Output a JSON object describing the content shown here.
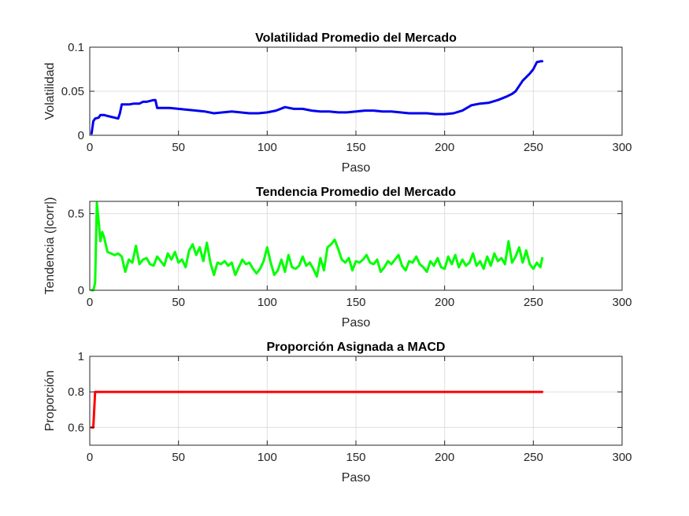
{
  "chart_data": [
    {
      "type": "line",
      "title": "Volatilidad Promedio del Mercado",
      "xlabel": "Paso",
      "ylabel": "Volatilidad",
      "xlim": [
        0,
        300
      ],
      "ylim": [
        0,
        0.1
      ],
      "xticks": [
        0,
        50,
        100,
        150,
        200,
        250,
        300
      ],
      "yticks": [
        0,
        0.05,
        0.1
      ],
      "xtick_labels": [
        "0",
        "50",
        "100",
        "150",
        "200",
        "250",
        "300"
      ],
      "ytick_labels": [
        "0",
        "0.05",
        "0.1"
      ],
      "grid": true,
      "color": "#0000ee",
      "series": [
        {
          "x": [
            1,
            2,
            3,
            5,
            6,
            8,
            10,
            12,
            14,
            16,
            17,
            18,
            20,
            22,
            25,
            28,
            30,
            32,
            34,
            36,
            37,
            38,
            40,
            45,
            50,
            55,
            60,
            65,
            70,
            75,
            80,
            85,
            90,
            95,
            100,
            105,
            110,
            115,
            120,
            125,
            130,
            135,
            140,
            145,
            150,
            155,
            160,
            165,
            170,
            175,
            180,
            185,
            190,
            195,
            200,
            205,
            210,
            215,
            220,
            225,
            230,
            235,
            238,
            240,
            242,
            244,
            246,
            248,
            250,
            252,
            254,
            255
          ],
          "y": [
            0.002,
            0.016,
            0.019,
            0.02,
            0.023,
            0.023,
            0.022,
            0.021,
            0.02,
            0.019,
            0.025,
            0.035,
            0.035,
            0.035,
            0.036,
            0.036,
            0.038,
            0.038,
            0.039,
            0.04,
            0.04,
            0.031,
            0.031,
            0.031,
            0.03,
            0.029,
            0.028,
            0.027,
            0.025,
            0.026,
            0.027,
            0.026,
            0.025,
            0.025,
            0.026,
            0.028,
            0.032,
            0.03,
            0.03,
            0.028,
            0.027,
            0.027,
            0.026,
            0.026,
            0.027,
            0.028,
            0.028,
            0.027,
            0.027,
            0.026,
            0.025,
            0.025,
            0.025,
            0.024,
            0.024,
            0.025,
            0.028,
            0.034,
            0.036,
            0.037,
            0.04,
            0.044,
            0.047,
            0.05,
            0.056,
            0.062,
            0.066,
            0.07,
            0.075,
            0.083,
            0.084,
            0.084
          ]
        }
      ]
    },
    {
      "type": "line",
      "title": "Tendencia Promedio del Mercado",
      "xlabel": "Paso",
      "ylabel": "Tendencia (|corr|)",
      "xlim": [
        0,
        300
      ],
      "ylim": [
        0,
        0.58
      ],
      "xticks": [
        0,
        50,
        100,
        150,
        200,
        250,
        300
      ],
      "yticks": [
        0,
        0.5
      ],
      "xtick_labels": [
        "0",
        "50",
        "100",
        "150",
        "200",
        "250",
        "300"
      ],
      "ytick_labels": [
        "0",
        "0.5"
      ],
      "grid": true,
      "color": "#00ff00",
      "series": [
        {
          "x": [
            1,
            2,
            3,
            4,
            5,
            6,
            7,
            8,
            9,
            10,
            12,
            14,
            16,
            18,
            20,
            22,
            24,
            26,
            28,
            30,
            32,
            34,
            36,
            38,
            40,
            42,
            44,
            46,
            48,
            50,
            52,
            54,
            56,
            58,
            60,
            62,
            64,
            66,
            68,
            70,
            72,
            74,
            76,
            78,
            80,
            82,
            84,
            86,
            88,
            90,
            92,
            94,
            96,
            98,
            100,
            102,
            104,
            106,
            108,
            110,
            112,
            114,
            116,
            118,
            120,
            122,
            124,
            126,
            128,
            130,
            132,
            134,
            136,
            138,
            140,
            142,
            144,
            146,
            148,
            150,
            152,
            154,
            156,
            158,
            160,
            162,
            164,
            166,
            168,
            170,
            172,
            174,
            176,
            178,
            180,
            182,
            184,
            186,
            188,
            190,
            192,
            194,
            196,
            198,
            200,
            202,
            204,
            206,
            208,
            210,
            212,
            214,
            216,
            218,
            220,
            222,
            224,
            226,
            228,
            230,
            232,
            234,
            236,
            238,
            240,
            242,
            244,
            246,
            248,
            250,
            252,
            254,
            255
          ],
          "y": [
            0.0,
            0.0,
            0.05,
            0.57,
            0.45,
            0.32,
            0.38,
            0.35,
            0.3,
            0.25,
            0.24,
            0.23,
            0.24,
            0.22,
            0.12,
            0.2,
            0.18,
            0.29,
            0.17,
            0.2,
            0.21,
            0.17,
            0.16,
            0.22,
            0.19,
            0.16,
            0.24,
            0.2,
            0.25,
            0.18,
            0.2,
            0.15,
            0.26,
            0.3,
            0.23,
            0.28,
            0.19,
            0.31,
            0.18,
            0.1,
            0.18,
            0.17,
            0.19,
            0.16,
            0.18,
            0.1,
            0.15,
            0.2,
            0.17,
            0.18,
            0.14,
            0.11,
            0.14,
            0.19,
            0.28,
            0.18,
            0.1,
            0.13,
            0.2,
            0.12,
            0.23,
            0.15,
            0.14,
            0.16,
            0.22,
            0.16,
            0.18,
            0.14,
            0.09,
            0.21,
            0.13,
            0.28,
            0.3,
            0.33,
            0.27,
            0.2,
            0.18,
            0.21,
            0.13,
            0.19,
            0.18,
            0.2,
            0.23,
            0.18,
            0.17,
            0.2,
            0.12,
            0.15,
            0.19,
            0.17,
            0.2,
            0.23,
            0.16,
            0.13,
            0.19,
            0.18,
            0.22,
            0.17,
            0.15,
            0.12,
            0.19,
            0.16,
            0.21,
            0.15,
            0.14,
            0.22,
            0.17,
            0.23,
            0.15,
            0.2,
            0.16,
            0.18,
            0.24,
            0.16,
            0.19,
            0.14,
            0.22,
            0.16,
            0.24,
            0.19,
            0.21,
            0.17,
            0.32,
            0.18,
            0.22,
            0.28,
            0.18,
            0.26,
            0.17,
            0.14,
            0.18,
            0.15,
            0.21
          ]
        }
      ]
    },
    {
      "type": "line",
      "title": "Proporción Asignada a MACD",
      "xlabel": "Paso",
      "ylabel": "Proporción",
      "xlim": [
        0,
        300
      ],
      "ylim": [
        0.5,
        1
      ],
      "xticks": [
        0,
        50,
        100,
        150,
        200,
        250,
        300
      ],
      "yticks": [
        0.6,
        0.8,
        1
      ],
      "xtick_labels": [
        "0",
        "50",
        "100",
        "150",
        "200",
        "250",
        "300"
      ],
      "ytick_labels": [
        "0.6",
        "0.8",
        "1"
      ],
      "grid": true,
      "color": "#ff0000",
      "series": [
        {
          "x": [
            1,
            2,
            3,
            255
          ],
          "y": [
            0.6,
            0.6,
            0.8,
            0.8
          ]
        }
      ]
    }
  ]
}
